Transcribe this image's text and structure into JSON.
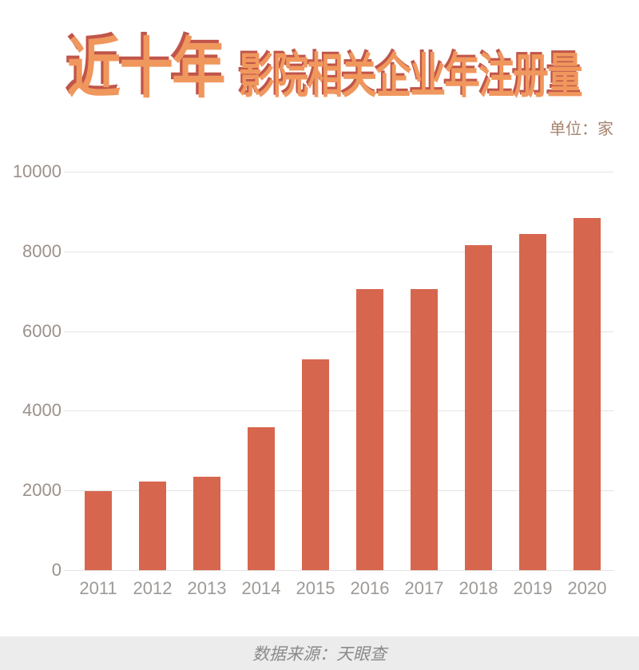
{
  "chart_data": {
    "type": "bar",
    "title": "近十年",
    "subtitle": "影院相关企业年注册量",
    "unit_label": "单位：家",
    "source": "数据来源：天眼查",
    "categories": [
      "2011",
      "2012",
      "2013",
      "2014",
      "2015",
      "2016",
      "2017",
      "2018",
      "2019",
      "2020"
    ],
    "values": [
      1990,
      2230,
      2350,
      3590,
      5300,
      7060,
      7060,
      8160,
      8440,
      8830
    ],
    "xlabel": "",
    "ylabel": "",
    "ylim": [
      0,
      10000
    ],
    "yticks": [
      0,
      2000,
      4000,
      6000,
      8000,
      10000
    ],
    "grid": true,
    "legend": false,
    "bar_color": "#d7664e"
  },
  "colors": {
    "bar": "#d7664e",
    "grid": "#e5e3e1",
    "axis_label": "#9c918b",
    "x_label": "#9d9996",
    "title_fill": "#f0975d",
    "title_shadow": "#c0554a",
    "unit_text": "#a6846f",
    "footer_bg": "#ececec",
    "footer_text": "#8a8a8a"
  }
}
